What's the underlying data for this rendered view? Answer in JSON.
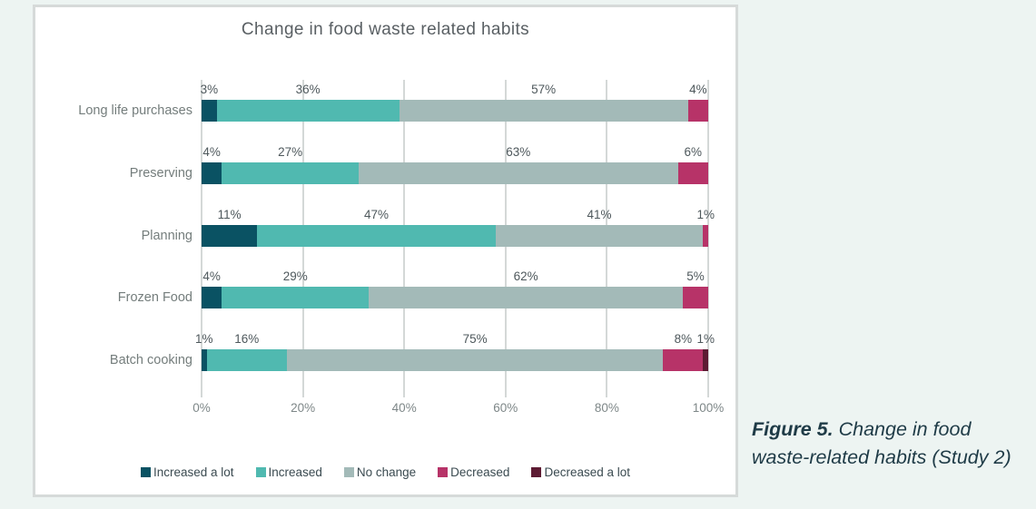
{
  "panel": {
    "title": "Change in food waste related habits"
  },
  "chart_data": {
    "type": "bar",
    "orientation": "horizontal",
    "stacked": true,
    "title": "Change in food waste related habits",
    "categories": [
      "Long life purchases",
      "Preserving",
      "Planning",
      "Frozen Food",
      "Batch cooking"
    ],
    "series": [
      {
        "name": "Increased a lot",
        "color": "#0a5263",
        "values": [
          3,
          4,
          11,
          4,
          1
        ]
      },
      {
        "name": "Increased",
        "color": "#50b9b0",
        "values": [
          36,
          27,
          47,
          29,
          16
        ]
      },
      {
        "name": "No change",
        "color": "#a3bab8",
        "values": [
          57,
          63,
          41,
          62,
          75
        ]
      },
      {
        "name": "Decreased",
        "color": "#b73368",
        "values": [
          4,
          6,
          1,
          5,
          8
        ]
      },
      {
        "name": "Decreased a lot",
        "color": "#5d1b33",
        "values": [
          0,
          0,
          0,
          0,
          1
        ]
      }
    ],
    "x_ticks": [
      "0%",
      "20%",
      "40%",
      "60%",
      "80%",
      "100%"
    ],
    "xlim": [
      0,
      100
    ],
    "grid": true,
    "legend_position": "bottom",
    "data_label_suffix": "%"
  },
  "colors": {
    "page_background": "#edf4f2",
    "panel_background": "#ffffff",
    "panel_border": "#d6dad9",
    "gridline": "#d4d8d7"
  },
  "caption": {
    "prefix": "Figure 5.",
    "text": " Change in food waste-related habits (Study 2)"
  }
}
